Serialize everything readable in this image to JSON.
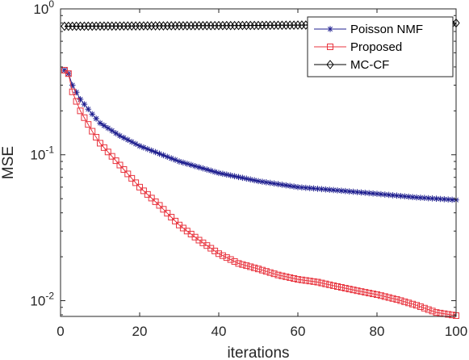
{
  "chart_data": {
    "type": "line",
    "xlabel": "iterations",
    "ylabel": "MSE",
    "xlim": [
      0,
      100
    ],
    "ylim": [
      0.0078,
      1.0
    ],
    "yscale": "log",
    "xticks": [
      0,
      20,
      40,
      60,
      80,
      100
    ],
    "xtick_labels": [
      "0",
      "20",
      "40",
      "60",
      "80",
      "100"
    ],
    "yticks": [
      0.01,
      0.1,
      1
    ],
    "ytick_labels": [
      {
        "base": "10",
        "exp": "-2"
      },
      {
        "base": "10",
        "exp": "-1"
      },
      {
        "base": "10",
        "exp": "0"
      }
    ],
    "grid": false,
    "legend_position": "top-right",
    "series": [
      {
        "name": "Poisson NMF",
        "color": "#1f1f8f",
        "marker": "asterisk",
        "points": [
          [
            1,
            0.38
          ],
          [
            2,
            0.36
          ],
          [
            3,
            0.3
          ],
          [
            5,
            0.24
          ],
          [
            8,
            0.19
          ],
          [
            10,
            0.165
          ],
          [
            15,
            0.135
          ],
          [
            20,
            0.115
          ],
          [
            30,
            0.09
          ],
          [
            40,
            0.075
          ],
          [
            50,
            0.066
          ],
          [
            60,
            0.06
          ],
          [
            70,
            0.057
          ],
          [
            80,
            0.054
          ],
          [
            90,
            0.051
          ],
          [
            100,
            0.049
          ]
        ]
      },
      {
        "name": "Proposed",
        "color": "#e8353f",
        "marker": "square",
        "points": [
          [
            1,
            0.38
          ],
          [
            2,
            0.36
          ],
          [
            3,
            0.27
          ],
          [
            5,
            0.2
          ],
          [
            8,
            0.145
          ],
          [
            10,
            0.12
          ],
          [
            15,
            0.085
          ],
          [
            20,
            0.06
          ],
          [
            25,
            0.045
          ],
          [
            30,
            0.033
          ],
          [
            35,
            0.026
          ],
          [
            40,
            0.021
          ],
          [
            45,
            0.018
          ],
          [
            50,
            0.0165
          ],
          [
            55,
            0.015
          ],
          [
            60,
            0.014
          ],
          [
            65,
            0.0134
          ],
          [
            70,
            0.0125
          ],
          [
            75,
            0.0117
          ],
          [
            80,
            0.011
          ],
          [
            85,
            0.0102
          ],
          [
            90,
            0.0093
          ],
          [
            95,
            0.0083
          ],
          [
            100,
            0.0079
          ]
        ]
      },
      {
        "name": "MC-CF",
        "color": "#000000",
        "marker": "diamond",
        "points": [
          [
            1,
            0.76
          ],
          [
            50,
            0.77
          ],
          [
            99,
            0.79
          ],
          [
            100,
            0.8
          ]
        ]
      }
    ]
  }
}
